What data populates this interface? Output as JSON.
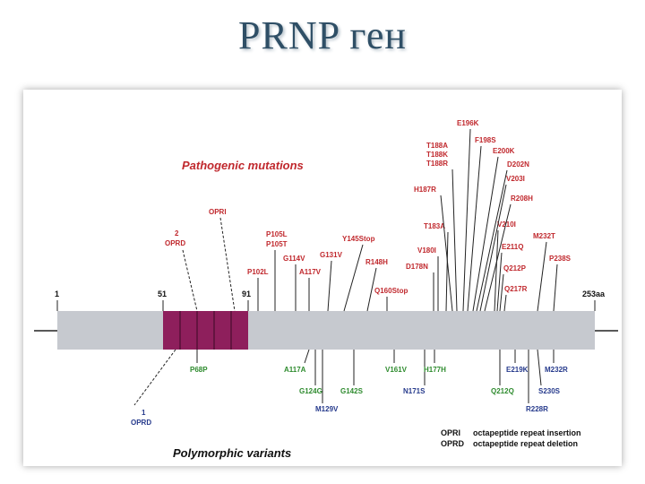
{
  "title": "PRNP ген",
  "headings": {
    "pathogenic": "Pathogenic mutations",
    "polymorphic": "Polymorphic variants"
  },
  "positions": {
    "start": "1",
    "oprd_start": "51",
    "oprd_end": "91",
    "end": "253aa"
  },
  "legend": [
    {
      "abbr": "OPRI",
      "desc": "octapeptide repeat insertion"
    },
    {
      "abbr": "OPRD",
      "desc": "octapeptide repeat deletion"
    }
  ],
  "colors": {
    "gene_bar": "#c6c9cf",
    "octarepeat": "#8e1f5c",
    "pathogenic": "#c0282d",
    "poly_green": "#2e8b2e",
    "poly_blue": "#263a8c",
    "title": "#2f4f66"
  },
  "pathogenic_labels": [
    "OPRI",
    "2 OPRD",
    "P102L",
    "P105L P105T",
    "G114V",
    "A117V",
    "G131V",
    "Y145Stop",
    "R148H",
    "Q160Stop",
    "T183A",
    "V180I",
    "D178N",
    "H187R",
    "T188A T188K T188R",
    "E196K",
    "F198S",
    "E200K",
    "D202N",
    "V203I",
    "R208H",
    "V210I",
    "E211Q",
    "Q212P",
    "Q217R",
    "M232T",
    "P238S"
  ],
  "polymorphic_labels": [
    "P68P",
    "1 OPRD",
    "A117A",
    "G124G",
    "G142S",
    "M129V",
    "V161V",
    "H177H",
    "N171S",
    "E219K",
    "M232R",
    "Q212Q",
    "S230S",
    "R228R"
  ]
}
